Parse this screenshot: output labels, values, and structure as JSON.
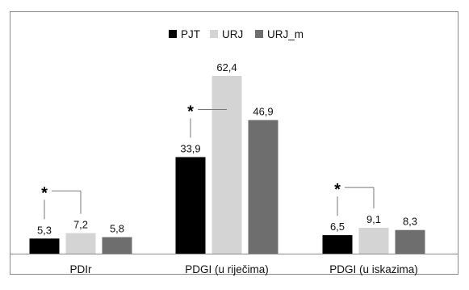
{
  "chart_data": {
    "type": "bar",
    "categories": [
      "PDIr",
      "PDGI (u riječima)",
      "PDGI (u iskazima)"
    ],
    "series": [
      {
        "name": "PJT",
        "color": "#000000",
        "values": [
          5.3,
          33.9,
          6.5
        ]
      },
      {
        "name": "URJ",
        "color": "#d4d4d4",
        "values": [
          7.2,
          62.4,
          9.1
        ]
      },
      {
        "name": "URJ_m",
        "color": "#6e6e6e",
        "values": [
          5.8,
          46.9,
          8.3
        ]
      }
    ],
    "value_labels": [
      [
        "5,3",
        "33,9",
        "6,5"
      ],
      [
        "7,2",
        "62,4",
        "9,1"
      ],
      [
        "5,8",
        "46,9",
        "8,3"
      ]
    ],
    "significance_marker": "*",
    "significance": [
      {
        "category_index": 0,
        "between": [
          "PJT",
          "URJ"
        ]
      },
      {
        "category_index": 1,
        "between": [
          "PJT",
          "URJ"
        ]
      },
      {
        "category_index": 2,
        "between": [
          "PJT",
          "URJ"
        ]
      }
    ],
    "title": "",
    "xlabel": "",
    "ylabel": "",
    "ylim": [
      0,
      70
    ],
    "grid": false,
    "legend_position": "top-center"
  }
}
